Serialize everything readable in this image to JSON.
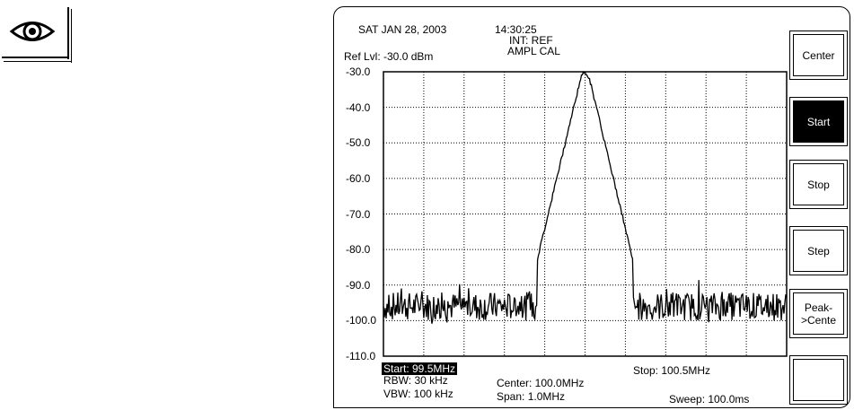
{
  "header": {
    "date": "SAT JAN 28,  2003",
    "time": "14:30:25",
    "int_ref": "INT: REF",
    "ampl_cal": "AMPL   CAL",
    "ref_level": "Ref  Lvl: -30.0 dBm"
  },
  "y_ticks": [
    "-30.0",
    "-40.0",
    "-50.0",
    "-60.0",
    "-70.0",
    "-80.0",
    "-90.0",
    "-100.0",
    "-110.0"
  ],
  "footer": {
    "start": "Start: 99.5MHz",
    "rbw": "RBW: 30 kHz",
    "vbw": "VBW: 100 kHz",
    "center": "Center: 100.0MHz",
    "span": "Span: 1.0MHz",
    "stop": "Stop: 100.5MHz",
    "sweep": "Sweep: 100.0ms"
  },
  "softkeys": [
    {
      "label": "Center",
      "active": false
    },
    {
      "label": "Start",
      "active": true
    },
    {
      "label": "Stop",
      "active": false
    },
    {
      "label": "Step",
      "active": false
    },
    {
      "label": "Peak-\n>Cente",
      "active": false
    },
    {
      "label": "",
      "active": false
    }
  ],
  "chart_data": {
    "type": "line",
    "xlim": [
      99.5,
      100.5
    ],
    "ylim": [
      -110,
      -30
    ],
    "grid": true,
    "noise_floor": -96,
    "peak": {
      "x": 100.0,
      "y": -30.0
    }
  },
  "icons": {
    "note": "eye-icon"
  }
}
